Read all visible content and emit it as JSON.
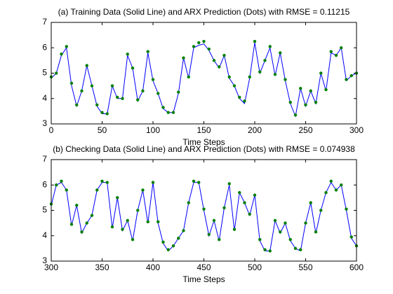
{
  "chart_data": [
    {
      "type": "line",
      "title": "(a) Training Data (Solid Line) and ARX Prediction (Dots) with RMSE = 0.11215",
      "xlabel": "Time Steps",
      "x": [
        0,
        5,
        10,
        15,
        20,
        25,
        30,
        35,
        40,
        45,
        50,
        55,
        60,
        65,
        70,
        75,
        80,
        85,
        90,
        95,
        100,
        105,
        110,
        115,
        120,
        125,
        130,
        135,
        140,
        145,
        150,
        155,
        160,
        165,
        170,
        175,
        180,
        185,
        190,
        195,
        200,
        205,
        210,
        215,
        220,
        225,
        230,
        235,
        240,
        245,
        250,
        255,
        260,
        265,
        270,
        275,
        280,
        285,
        290,
        295,
        300
      ],
      "xlim": [
        0,
        300
      ],
      "xticks": [
        0,
        50,
        100,
        150,
        200,
        250,
        300
      ],
      "ylim": [
        3,
        7
      ],
      "yticks": [
        3,
        4,
        5,
        6,
        7
      ],
      "series": [
        {
          "style": "line",
          "color": "#0000ff",
          "values": [
            4.8,
            5.0,
            5.7,
            6.0,
            4.5,
            3.7,
            4.3,
            5.3,
            4.5,
            3.7,
            3.4,
            3.4,
            4.5,
            4.0,
            4.0,
            5.7,
            5.2,
            3.9,
            4.3,
            5.8,
            4.7,
            4.2,
            3.6,
            3.45,
            3.45,
            4.2,
            5.6,
            4.8,
            6.0,
            6.1,
            6.15,
            5.9,
            5.5,
            5.2,
            5.7,
            4.8,
            4.5,
            4.0,
            3.8,
            4.8,
            6.2,
            5.0,
            5.5,
            6.0,
            4.9,
            5.8,
            4.7,
            3.8,
            3.3,
            4.4,
            3.7,
            4.3,
            3.8,
            5.0,
            4.3,
            5.8,
            5.7,
            6.0,
            4.7,
            4.9,
            5.0
          ]
        },
        {
          "style": "markers",
          "color": "#008000",
          "values": [
            4.85,
            5.0,
            5.75,
            6.05,
            4.6,
            3.75,
            4.3,
            5.3,
            4.5,
            3.75,
            3.45,
            3.4,
            4.5,
            4.05,
            4.0,
            5.75,
            5.2,
            3.95,
            4.3,
            5.85,
            4.75,
            4.2,
            3.65,
            3.45,
            3.45,
            4.25,
            5.6,
            4.85,
            6.05,
            6.2,
            6.25,
            5.95,
            5.5,
            5.25,
            5.7,
            4.85,
            4.5,
            4.05,
            3.9,
            4.85,
            6.25,
            5.05,
            5.5,
            6.05,
            4.95,
            5.8,
            4.75,
            3.85,
            3.35,
            4.4,
            3.75,
            4.3,
            3.85,
            5.0,
            4.35,
            5.85,
            5.7,
            6.0,
            4.75,
            4.9,
            5.0
          ]
        }
      ]
    },
    {
      "type": "line",
      "title": "(b) Checking Data (Solid Line) and ARX Prediction (Dots) with RMSE = 0.074938",
      "xlabel": "Time Steps",
      "x": [
        300,
        305,
        310,
        315,
        320,
        325,
        330,
        335,
        340,
        345,
        350,
        355,
        360,
        365,
        370,
        375,
        380,
        385,
        390,
        395,
        400,
        405,
        410,
        415,
        420,
        425,
        430,
        435,
        440,
        445,
        450,
        455,
        460,
        465,
        470,
        475,
        480,
        485,
        490,
        495,
        500,
        505,
        510,
        515,
        520,
        525,
        530,
        535,
        540,
        545,
        550,
        555,
        560,
        565,
        570,
        575,
        580,
        585,
        590,
        595,
        600
      ],
      "xlim": [
        300,
        600
      ],
      "xticks": [
        300,
        350,
        400,
        450,
        500,
        550,
        600
      ],
      "ylim": [
        3,
        7
      ],
      "yticks": [
        3,
        4,
        5,
        6,
        7
      ],
      "series": [
        {
          "style": "line",
          "color": "#0000ff",
          "values": [
            5.2,
            6.0,
            6.1,
            5.8,
            4.4,
            5.2,
            4.1,
            4.5,
            4.8,
            5.8,
            6.1,
            6.1,
            4.3,
            5.5,
            4.2,
            4.6,
            3.8,
            5.0,
            5.8,
            4.5,
            6.1,
            4.5,
            3.7,
            3.4,
            3.6,
            3.9,
            4.2,
            5.3,
            6.1,
            6.1,
            5.0,
            4.0,
            4.6,
            3.8,
            5.1,
            6.0,
            4.2,
            5.7,
            5.3,
            4.8,
            5.6,
            3.8,
            3.4,
            3.4,
            4.6,
            4.1,
            4.5,
            3.8,
            3.5,
            3.4,
            4.5,
            5.3,
            4.1,
            5.0,
            5.7,
            6.1,
            5.8,
            6.0,
            5.0,
            3.9,
            3.6
          ]
        },
        {
          "style": "markers",
          "color": "#008000",
          "values": [
            5.25,
            6.0,
            6.15,
            5.8,
            4.45,
            5.2,
            4.15,
            4.5,
            4.8,
            5.8,
            6.15,
            6.1,
            4.35,
            5.5,
            4.25,
            4.6,
            3.85,
            5.0,
            5.8,
            4.55,
            6.1,
            4.55,
            3.75,
            3.45,
            3.6,
            3.9,
            4.2,
            5.3,
            6.15,
            6.1,
            5.05,
            4.05,
            4.6,
            3.85,
            5.1,
            6.05,
            4.25,
            5.7,
            5.3,
            4.85,
            5.6,
            3.85,
            3.45,
            3.4,
            4.6,
            4.15,
            4.5,
            3.85,
            3.5,
            3.45,
            4.5,
            5.3,
            4.15,
            5.0,
            5.7,
            6.15,
            5.8,
            6.0,
            5.05,
            3.95,
            3.6
          ]
        }
      ]
    }
  ]
}
